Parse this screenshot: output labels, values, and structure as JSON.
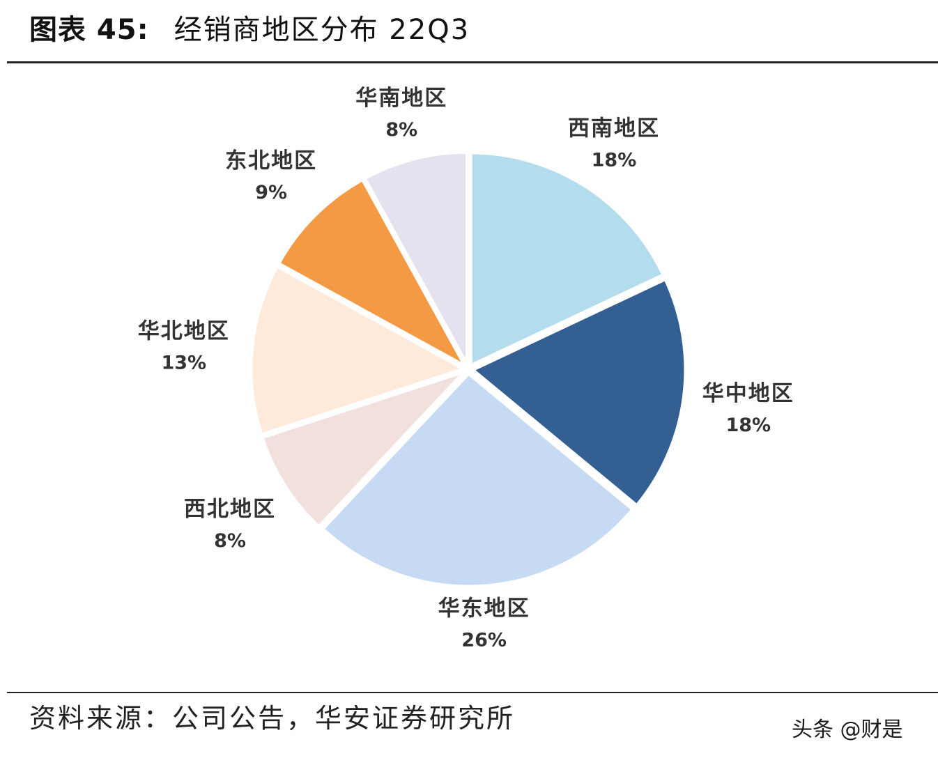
{
  "figure": {
    "label": "图表 45:",
    "title": "经销商地区分布 22Q3"
  },
  "source": "资料来源：公司公告，华安证券研究所",
  "watermark": "头条 @财是",
  "chart_data": {
    "type": "pie",
    "title": "经销商地区分布 22Q3",
    "categories": [
      "西南地区",
      "华中地区",
      "华东地区",
      "西北地区",
      "华北地区",
      "东北地区",
      "华南地区"
    ],
    "values": [
      18,
      18,
      26,
      8,
      13,
      9,
      8
    ],
    "labels": [
      "18%",
      "18%",
      "26%",
      "8%",
      "13%",
      "9%",
      "8%"
    ],
    "colors": [
      "#b3dcec",
      "#345f93",
      "#c6daf3",
      "#f1e0dc",
      "#fdeadb",
      "#f49a44",
      "#e4e2ef"
    ],
    "start": "12 o'clock",
    "direction": "clockwise"
  }
}
